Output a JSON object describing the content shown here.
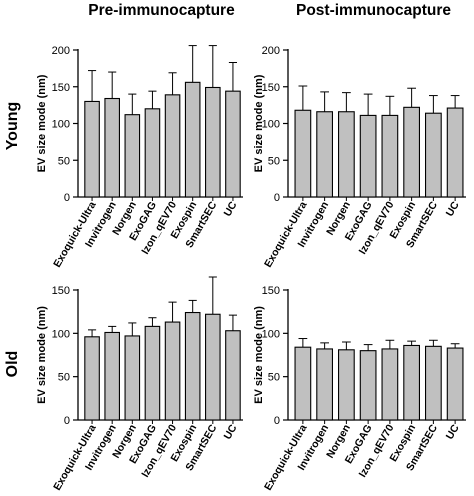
{
  "column_titles": [
    "Pre-immunocapture",
    "Post-immunocapture"
  ],
  "row_labels": [
    "Young",
    "Old"
  ],
  "chart_data": [
    {
      "type": "bar",
      "panel": "Young / Pre-immunocapture",
      "categories": [
        "Exoquick-Ultra",
        "Invitrogen",
        "Norgen",
        "ExoGAG",
        "Izon_qEV70",
        "Exospin",
        "SmartSEC",
        "UC"
      ],
      "values": [
        130,
        134,
        112,
        120,
        139,
        156,
        149,
        144
      ],
      "errors": [
        42,
        36,
        28,
        24,
        30,
        50,
        57,
        39
      ],
      "ylabel": "EV size mode (nm)",
      "ylim": [
        0,
        200
      ],
      "yticks": [
        0,
        50,
        100,
        150,
        200
      ],
      "bar_color": "#c0c0c0"
    },
    {
      "type": "bar",
      "panel": "Young / Post-immunocapture",
      "categories": [
        "Exoquick-Ultra",
        "Invitrogen",
        "Norgen",
        "ExoGAG",
        "Izon_qEV70",
        "Exospin",
        "SmartSEC",
        "UC"
      ],
      "values": [
        118,
        116,
        116,
        111,
        111,
        122,
        114,
        121
      ],
      "errors": [
        33,
        27,
        26,
        29,
        26,
        26,
        24,
        17
      ],
      "ylabel": "EV size mode (nm)",
      "ylim": [
        0,
        200
      ],
      "yticks": [
        0,
        50,
        100,
        150,
        200
      ],
      "bar_color": "#c0c0c0"
    },
    {
      "type": "bar",
      "panel": "Old / Pre-immunocapture",
      "categories": [
        "Exoquick-Ultra",
        "Invitrogen",
        "Norgen",
        "ExoGAG",
        "Izon_qEV70",
        "Exospin",
        "SmartSEC",
        "UC"
      ],
      "values": [
        96,
        101,
        97,
        108,
        113,
        124,
        122,
        103
      ],
      "errors": [
        8,
        7,
        15,
        10,
        23,
        14,
        43,
        18
      ],
      "ylabel": "EV size mode (nm)",
      "ylim": [
        0,
        150
      ],
      "yticks": [
        0,
        50,
        100,
        150
      ],
      "bar_color": "#c0c0c0"
    },
    {
      "type": "bar",
      "panel": "Old / Post-immunocapture",
      "categories": [
        "Exoquick-Ultra",
        "Invitrogen",
        "Norgen",
        "ExoGAG",
        "Izon_qEV70",
        "Exospin",
        "SmartSEC",
        "UC"
      ],
      "values": [
        84,
        82,
        81,
        80,
        82,
        86,
        85,
        83
      ],
      "errors": [
        10,
        7,
        9,
        7,
        10,
        5,
        7,
        5
      ],
      "ylabel": "EV size mode (nm)",
      "ylim": [
        0,
        150
      ],
      "yticks": [
        0,
        50,
        100,
        150
      ],
      "bar_color": "#c0c0c0"
    }
  ]
}
